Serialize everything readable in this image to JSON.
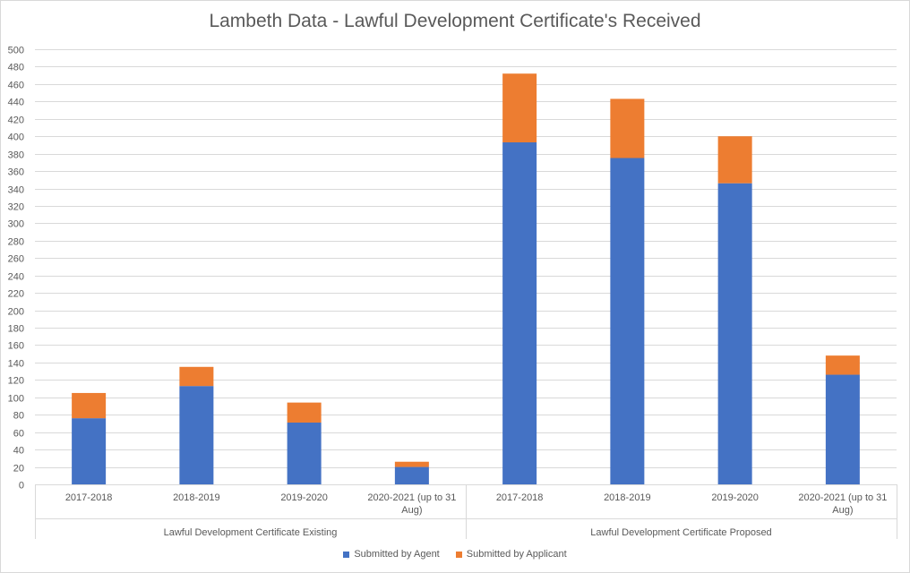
{
  "chart_data": {
    "type": "bar",
    "stacked": true,
    "title": "Lambeth Data - Lawful Development Certificate's Received",
    "groups": [
      {
        "label": "Lawful Development Certificate Existing",
        "categories": [
          "2017-2018",
          "2018-2019",
          "2019-2020",
          "2020-2021 (up to 31 Aug)"
        ]
      },
      {
        "label": "Lawful Development Certificate Proposed",
        "categories": [
          "2017-2018",
          "2018-2019",
          "2019-2020",
          "2020-2021 (up to 31 Aug)"
        ]
      }
    ],
    "series": [
      {
        "name": "Submitted by Agent",
        "color": "#4472c4",
        "values": [
          76,
          113,
          71,
          20,
          393,
          375,
          346,
          126
        ]
      },
      {
        "name": "Submitted by Applicant",
        "color": "#ed7d31",
        "values": [
          29,
          22,
          23,
          6,
          79,
          68,
          54,
          22
        ]
      }
    ],
    "ylim": [
      0,
      500
    ],
    "ytick_step": 20,
    "grid": true,
    "legend_position": "bottom"
  }
}
